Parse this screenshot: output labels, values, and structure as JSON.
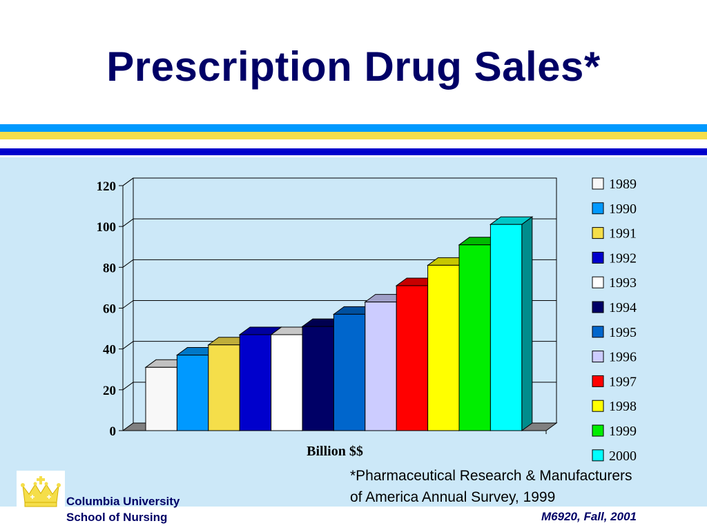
{
  "slide": {
    "title": "Prescription Drug Sales*",
    "footnote_line1": "*Pharmaceutical Research & Manufacturers",
    "footnote_line2": "of America Annual Survey, 1999",
    "school_line1": "Columbia University",
    "school_line2": "School of Nursing",
    "course": "M6920, Fall, 2001",
    "logo_icon": "crown-icon"
  },
  "colors": {
    "title": "#000066",
    "panel": "#cce8f8",
    "stripe_blue": "#0099ff",
    "stripe_yellow": "#f5de4a",
    "stripe_navy": "#0000cc"
  },
  "chart_data": {
    "type": "bar",
    "three_d": true,
    "xlabel": "Billion $$",
    "ylabel": "",
    "ylim": [
      0,
      120
    ],
    "yticks": [
      0,
      20,
      40,
      60,
      80,
      100,
      120
    ],
    "grid": true,
    "legend_position": "right",
    "series": [
      {
        "name": "1989",
        "value": 31,
        "color": "#f8f8f8"
      },
      {
        "name": "1990",
        "value": 37,
        "color": "#0099ff"
      },
      {
        "name": "1991",
        "value": 42,
        "color": "#f5de4a"
      },
      {
        "name": "1992",
        "value": 47,
        "color": "#0000cc"
      },
      {
        "name": "1993",
        "value": 47,
        "color": "#ffffff"
      },
      {
        "name": "1994",
        "value": 51,
        "color": "#000066"
      },
      {
        "name": "1995",
        "value": 57,
        "color": "#0066cc"
      },
      {
        "name": "1996",
        "value": 63,
        "color": "#ccccff"
      },
      {
        "name": "1997",
        "value": 71,
        "color": "#ff0000"
      },
      {
        "name": "1998",
        "value": 81,
        "color": "#ffff00"
      },
      {
        "name": "1999",
        "value": 91,
        "color": "#00ee00"
      },
      {
        "name": "2000",
        "value": 101,
        "color": "#00ffff"
      }
    ]
  }
}
